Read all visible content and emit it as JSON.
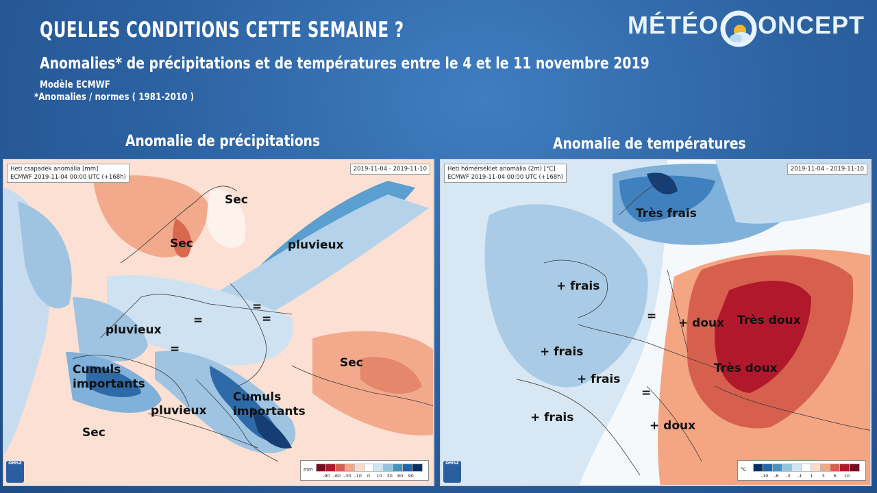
{
  "header": {
    "title": "QUELLES CONDITIONS CETTE SEMAINE ?",
    "subtitle": "Anomalies* de précipitations et de températures entre le 4 et le 11 novembre 2019",
    "model": "Modèle ECMWF",
    "norms": "*Anomalies / normes ( 1981-2010 )"
  },
  "logo": {
    "part1": "MÉTÉO",
    "part2": "ONCEPT"
  },
  "left_panel": {
    "heading": "Anomalie de précipitations",
    "info_line1": "Heti csapadék anomália [mm]",
    "info_line2": "ECMWF 2019-11-04 00:00 UTC (+168h)",
    "date_range": "2019-11-04 - 2019-11-10",
    "labels": {
      "sec_nw": "Sec",
      "sec_norway": "Sec",
      "pluvieux_ne": "pluvieux",
      "eq1": "=",
      "eq2": "=",
      "eq3": "=",
      "pluvieux_fr": "pluvieux",
      "eq4": "=",
      "sec_east": "Sec",
      "cumuls_west": "Cumuls\nimportants",
      "pluvieux_med": "pluvieux",
      "cumuls_east": "Cumuls\nimportants",
      "sec_sw": "Sec"
    },
    "legend": {
      "unit": "mm",
      "ticks": [
        "-90",
        "-60",
        "-30",
        "-10",
        "0",
        "10",
        "30",
        "60",
        "90"
      ],
      "colors": [
        "#7a0a1e",
        "#b2182b",
        "#d6604d",
        "#f4a582",
        "#fddbc7",
        "#ffffff",
        "#d1e5f0",
        "#92c5de",
        "#4393c3",
        "#2166ac",
        "#053061"
      ]
    },
    "org": "OMSZ"
  },
  "right_panel": {
    "heading": "Anomalie de températures",
    "info_line1": "Heti hőmérséklet anomália (2m) [°C]",
    "info_line2": "ECMWF 2019-11-04 00:00 UTC (+168h)",
    "date_range": "2019-11-04 - 2019-11-10",
    "labels": {
      "tres_frais": "Très frais",
      "frais_uk": "+ frais",
      "eq1": "=",
      "doux1": "+ doux",
      "tres_doux1": "Très doux",
      "frais_w": "+ frais",
      "frais_fr": "+ frais",
      "tres_doux2": "Très doux",
      "eq2": "=",
      "frais_ib": "+ frais",
      "doux2": "+ doux"
    },
    "legend": {
      "unit": "°C",
      "ticks": [
        "-10",
        "-6",
        "-3",
        "-1",
        "1",
        "3",
        "6",
        "10"
      ],
      "colors": [
        "#053061",
        "#2166ac",
        "#4393c3",
        "#92c5de",
        "#d1e5f0",
        "#ffffff",
        "#fddbc7",
        "#f4a582",
        "#d6604d",
        "#b2182b",
        "#7a0a1e"
      ]
    },
    "org": "OMSZ"
  }
}
